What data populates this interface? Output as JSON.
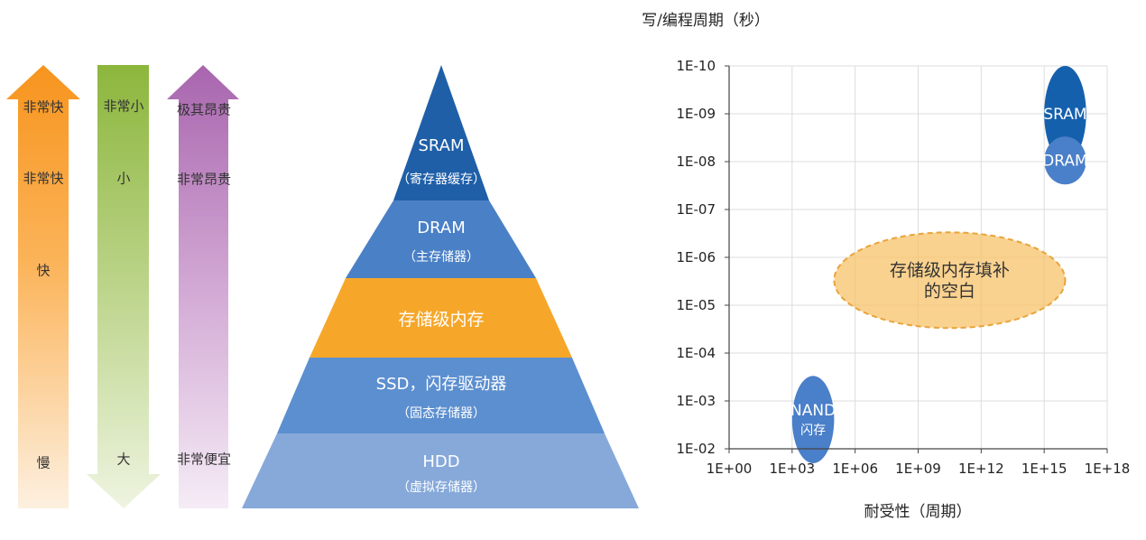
{
  "speed_arrow": {
    "color": "#f7941d",
    "labels": [
      "非常快",
      "非常快",
      "快",
      "慢"
    ]
  },
  "size_arrow": {
    "color": "#8cb63c",
    "labels": [
      "非常小",
      "小",
      "大"
    ]
  },
  "cost_arrow": {
    "color": "#a865ae",
    "labels": [
      "极其昂贵",
      "非常昂贵",
      "非常便宜"
    ]
  },
  "pyramid": {
    "layers": [
      {
        "title": "SRAM",
        "subtitle": "（寄存器缓存）",
        "color": "#1f5fa8"
      },
      {
        "title": "DRAM",
        "subtitle": "（主存储器）",
        "color": "#4a80c6"
      },
      {
        "title": "存储级内存",
        "subtitle": "",
        "color": "#f6a72a"
      },
      {
        "title": "SSD，闪存驱动器",
        "subtitle": "（固态存储器）",
        "color": "#5c8fcf"
      },
      {
        "title": "HDD",
        "subtitle": "（虚拟存储器）",
        "color": "#86a9da"
      }
    ]
  },
  "chart_data": {
    "type": "scatter",
    "title": "写/编程周期（秒）",
    "xlabel": "耐受性（周期）",
    "ylabel": "",
    "x_ticks": [
      "1E+00",
      "1E+03",
      "1E+06",
      "1E+09",
      "1E+12",
      "1E+15",
      "1E+18"
    ],
    "y_ticks": [
      "1E-10",
      "1E-09",
      "1E-08",
      "1E-07",
      "1E-06",
      "1E-05",
      "1E-04",
      "1E-03",
      "1E-02"
    ],
    "x_scale": "log",
    "y_scale": "log",
    "xlim": [
      1,
      1e+18
    ],
    "ylim": [
      0.01,
      1e-10
    ],
    "grid": true,
    "regions": [
      {
        "name": "SRAM",
        "label": "SRAM",
        "label2": "",
        "x": [
          1000000000000000.0,
          1e+17
        ],
        "y": [
          1e-10,
          1e-08
        ],
        "color": "#1560ad",
        "style": "solid"
      },
      {
        "name": "DRAM",
        "label": "DRAM",
        "label2": "",
        "x": [
          1000000000000000.0,
          1e+17
        ],
        "y": [
          3e-09,
          3e-08
        ],
        "color": "#4a7fc9",
        "style": "solid"
      },
      {
        "name": "gap",
        "label": "存储级内存填补",
        "label2": "的空白",
        "x": [
          100000.0,
          1e+16
        ],
        "y": [
          3e-07,
          3e-05
        ],
        "color": "#f8c36a",
        "style": "dashed"
      },
      {
        "name": "NAND",
        "label": "NAND",
        "label2": "闪存",
        "x": [
          1000.0,
          100000.0
        ],
        "y": [
          0.0003,
          0.02
        ],
        "color": "#4a7fc9",
        "style": "solid"
      }
    ]
  }
}
